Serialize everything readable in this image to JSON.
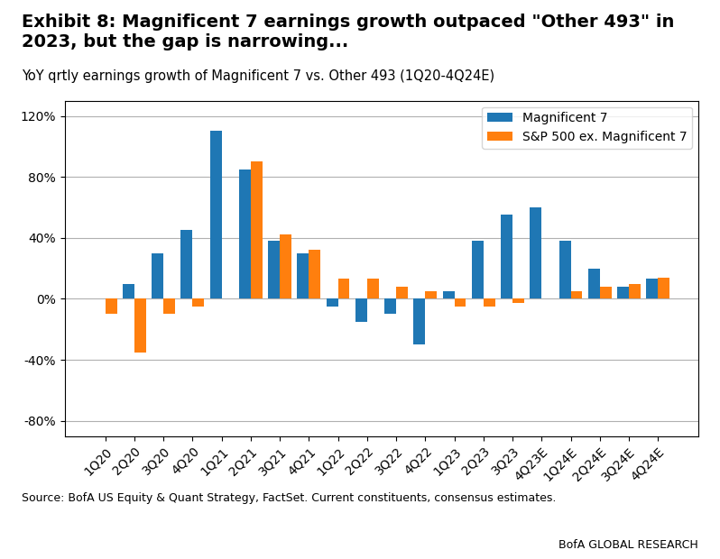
{
  "chart_data": {
    "type": "bar",
    "title": "Exhibit 8: Magnificent 7 earnings growth outpaced \"Other 493\" in\n2023, but the gap is narrowing...",
    "subtitle": "YoY qrtly earnings growth of Magnificent 7 vs. Other 493 (1Q20-4Q24E)",
    "categories": [
      "1Q20",
      "2Q20",
      "3Q20",
      "4Q20",
      "1Q21",
      "2Q21",
      "3Q21",
      "4Q21",
      "1Q22",
      "2Q22",
      "3Q22",
      "4Q22",
      "1Q23",
      "2Q23",
      "3Q23",
      "4Q23E",
      "1Q24E",
      "2Q24E",
      "3Q24E",
      "4Q24E"
    ],
    "series": [
      {
        "name": "Magnificent 7",
        "values": [
          0,
          10,
          30,
          45,
          110,
          85,
          38,
          30,
          -5,
          -15,
          -10,
          -30,
          5,
          38,
          55,
          60,
          38,
          20,
          8,
          13
        ]
      },
      {
        "name": "S&P 500 ex. Magnificent 7",
        "values": [
          -10,
          -35,
          -10,
          -5,
          0,
          90,
          42,
          32,
          13,
          13,
          8,
          5,
          -5,
          -5,
          -3,
          0,
          5,
          8,
          10,
          14
        ]
      }
    ],
    "ylim": [
      -90,
      130
    ],
    "yticks": [
      {
        "value": -80,
        "label": "-80%"
      },
      {
        "value": -40,
        "label": "-40%"
      },
      {
        "value": 0,
        "label": "0%"
      },
      {
        "value": 40,
        "label": "40%"
      },
      {
        "value": 80,
        "label": "80%"
      },
      {
        "value": 120,
        "label": "120%"
      }
    ],
    "grid": true,
    "legend": "upper right",
    "annotations": [
      "Source: BofA US Equity & Quant Strategy, FactSet. Current constituents, consensus estimates.",
      "BofA GLOBAL RESEARCH"
    ]
  }
}
